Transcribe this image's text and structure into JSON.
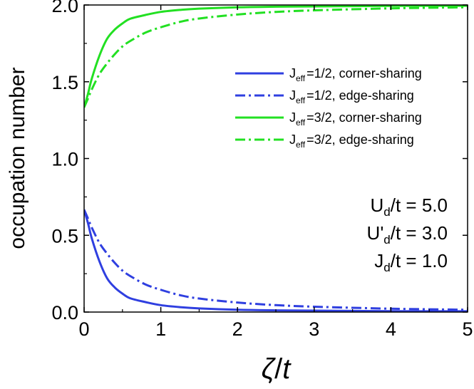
{
  "chart_data": {
    "type": "line",
    "title": "",
    "xlabel": {
      "main": "ζ",
      "sep": "/",
      "var": "t"
    },
    "ylabel": "occupation number",
    "xlim": [
      0,
      5
    ],
    "ylim": [
      0,
      2
    ],
    "x_ticks": [
      0,
      1,
      2,
      3,
      4,
      5
    ],
    "y_ticks": [
      0.0,
      0.5,
      1.0,
      1.5,
      2.0
    ],
    "x_tick_labels": [
      "0",
      "1",
      "2",
      "3",
      "4",
      "5"
    ],
    "y_tick_labels": [
      "0.0",
      "0.5",
      "1.0",
      "1.5",
      "2.0"
    ],
    "legend_position": "upper-right",
    "colors": {
      "blue": "#2f3fe0",
      "green": "#22e022",
      "axis": "#000000"
    },
    "series": [
      {
        "name": {
          "base": "J",
          "sub": "eff",
          "rest": "=1/2, corner-sharing"
        },
        "color": "#2f3fe0",
        "style": "solid",
        "x": [
          0,
          0.05,
          0.1,
          0.2,
          0.3,
          0.4,
          0.5,
          0.6,
          0.8,
          1.0,
          1.25,
          1.5,
          2.0,
          2.5,
          3.0,
          4.0,
          5.0
        ],
        "y": [
          0.667,
          0.58,
          0.48,
          0.33,
          0.22,
          0.16,
          0.12,
          0.09,
          0.065,
          0.045,
          0.032,
          0.024,
          0.015,
          0.011,
          0.009,
          0.006,
          0.005
        ]
      },
      {
        "name": {
          "base": "J",
          "sub": "eff",
          "rest": "=1/2, edge-sharing"
        },
        "color": "#2f3fe0",
        "style": "dashdot",
        "x": [
          0,
          0.05,
          0.1,
          0.2,
          0.3,
          0.4,
          0.5,
          0.6,
          0.8,
          1.0,
          1.25,
          1.5,
          2.0,
          2.5,
          3.0,
          4.0,
          5.0
        ],
        "y": [
          0.667,
          0.61,
          0.55,
          0.45,
          0.38,
          0.32,
          0.27,
          0.235,
          0.18,
          0.145,
          0.11,
          0.088,
          0.062,
          0.045,
          0.035,
          0.022,
          0.015
        ]
      },
      {
        "name": {
          "base": "J",
          "sub": "eff",
          "rest": "=3/2, corner-sharing"
        },
        "color": "#22e022",
        "style": "solid",
        "x": [
          0,
          0.05,
          0.1,
          0.2,
          0.3,
          0.4,
          0.5,
          0.6,
          0.8,
          1.0,
          1.25,
          1.5,
          2.0,
          2.5,
          3.0,
          4.0,
          5.0
        ],
        "y": [
          1.333,
          1.42,
          1.52,
          1.67,
          1.78,
          1.84,
          1.88,
          1.91,
          1.935,
          1.955,
          1.968,
          1.976,
          1.985,
          1.989,
          1.991,
          1.994,
          1.995
        ]
      },
      {
        "name": {
          "base": "J",
          "sub": "eff",
          "rest": "=3/2, edge-sharing"
        },
        "color": "#22e022",
        "style": "dashdot",
        "x": [
          0,
          0.05,
          0.1,
          0.2,
          0.3,
          0.4,
          0.5,
          0.6,
          0.8,
          1.0,
          1.25,
          1.5,
          2.0,
          2.5,
          3.0,
          4.0,
          5.0
        ],
        "y": [
          1.333,
          1.39,
          1.45,
          1.55,
          1.62,
          1.68,
          1.73,
          1.765,
          1.82,
          1.855,
          1.89,
          1.912,
          1.938,
          1.955,
          1.965,
          1.978,
          1.985
        ]
      }
    ],
    "annotations": [
      {
        "base": "U",
        "sub": "d",
        "rest": "/t = 5.0"
      },
      {
        "base": "U'",
        "sub": "d",
        "rest": "/t = 3.0"
      },
      {
        "base": "J",
        "sub": "d",
        "rest": "/t = 1.0"
      }
    ]
  }
}
